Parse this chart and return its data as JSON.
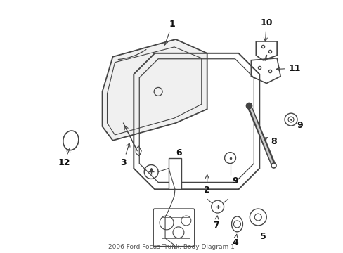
{
  "title": "2006 Ford Focus Trunk, Body Diagram 1",
  "bg_color": "#ffffff",
  "lc": "#444444",
  "figsize": [
    4.89,
    3.6
  ],
  "dpi": 100
}
